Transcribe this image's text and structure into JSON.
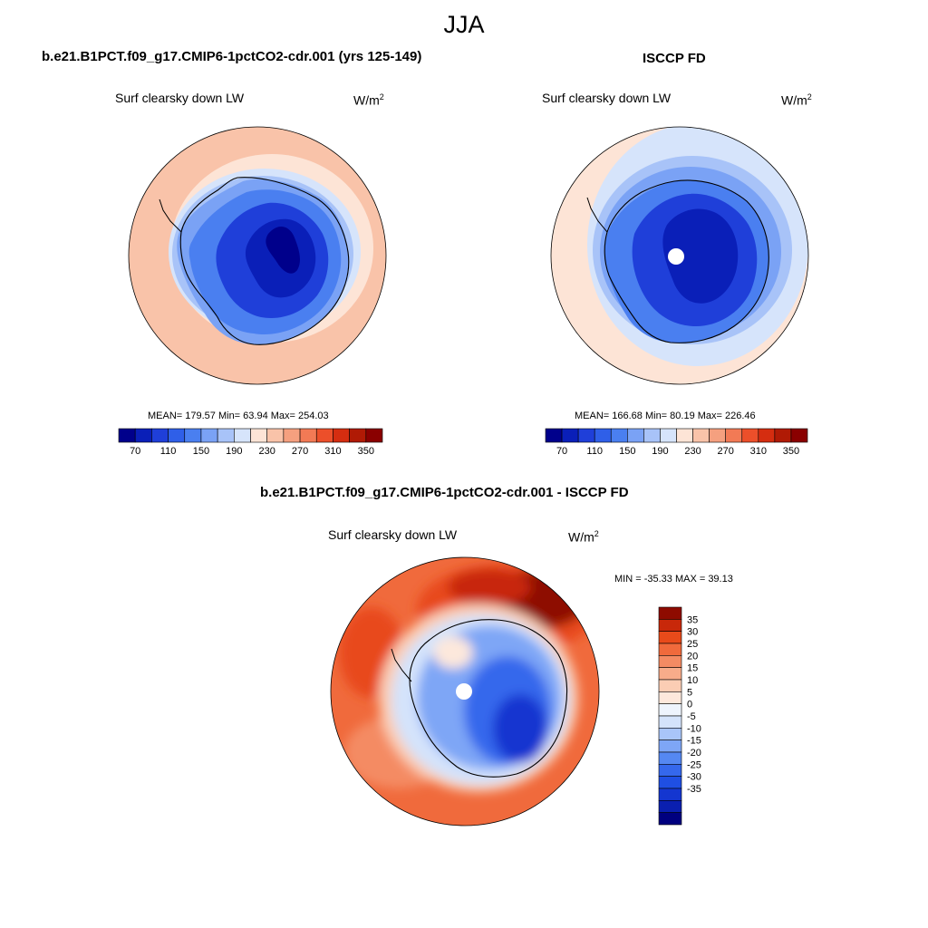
{
  "season": "JJA",
  "colors": {
    "main_scale": [
      "#00008b",
      "#0a1fb8",
      "#1f3fd9",
      "#2f5fe8",
      "#4a7ff0",
      "#7aa2f5",
      "#a8c3f8",
      "#d6e4fb",
      "#fde4d6",
      "#f9c3a9",
      "#f5a07f",
      "#f27a55",
      "#ec4f2a",
      "#d52d10",
      "#b01a05",
      "#8a0000"
    ],
    "diff_scale": [
      "#00007f",
      "#0a1fb0",
      "#1436d0",
      "#1f4fe3",
      "#3568ec",
      "#5588f2",
      "#7ea6f6",
      "#a9c5f9",
      "#d4e3fb",
      "#eef4fd",
      "#fde8dc",
      "#fbcdb4",
      "#f8ac8a",
      "#f48b63",
      "#f06a3c",
      "#e84a1a",
      "#c8280a",
      "#8e0b00"
    ]
  },
  "chart_data": [
    {
      "type": "heatmap",
      "title": "b.e21.B1PCT.f09_g17.CMIP6-1pctCO2-cdr.001 (yrs 125-149)",
      "subtitle": "Surf clearsky down LW",
      "units": "W/m",
      "units_sup": "2",
      "stats_text": "MEAN= 179.57  Min=  63.94  Max= 254.03",
      "mean": 179.57,
      "min": 63.94,
      "max": 254.03,
      "colorbar_ticks": [
        "70",
        "110",
        "150",
        "190",
        "230",
        "270",
        "310",
        "350"
      ],
      "levels": [
        70,
        90,
        110,
        130,
        150,
        170,
        190,
        210,
        230,
        250,
        270,
        290,
        310,
        330,
        350
      ]
    },
    {
      "type": "heatmap",
      "title": "ISCCP FD",
      "subtitle": "Surf clearsky down LW",
      "units": "W/m",
      "units_sup": "2",
      "stats_text": "MEAN= 166.68  Min=  80.19  Max= 226.46",
      "mean": 166.68,
      "min": 80.19,
      "max": 226.46,
      "colorbar_ticks": [
        "70",
        "110",
        "150",
        "190",
        "230",
        "270",
        "310",
        "350"
      ],
      "levels": [
        70,
        90,
        110,
        130,
        150,
        170,
        190,
        210,
        230,
        250,
        270,
        290,
        310,
        330,
        350
      ]
    },
    {
      "type": "heatmap",
      "title": "b.e21.B1PCT.f09_g17.CMIP6-1pctCO2-cdr.001 - ISCCP FD",
      "subtitle": "Surf clearsky down LW",
      "units": "W/m",
      "units_sup": "2",
      "stats_text": "MIN = -35.33 MAX =  39.13",
      "min": -35.33,
      "max": 39.13,
      "colorbar_ticks": [
        "35",
        "30",
        "25",
        "20",
        "15",
        "10",
        "5",
        "0",
        "-5",
        "-10",
        "-15",
        "-20",
        "-25",
        "-30",
        "-35"
      ],
      "levels": [
        -40,
        -35,
        -30,
        -25,
        -20,
        -15,
        -10,
        -5,
        0,
        5,
        10,
        15,
        20,
        25,
        30,
        35,
        40
      ]
    }
  ]
}
